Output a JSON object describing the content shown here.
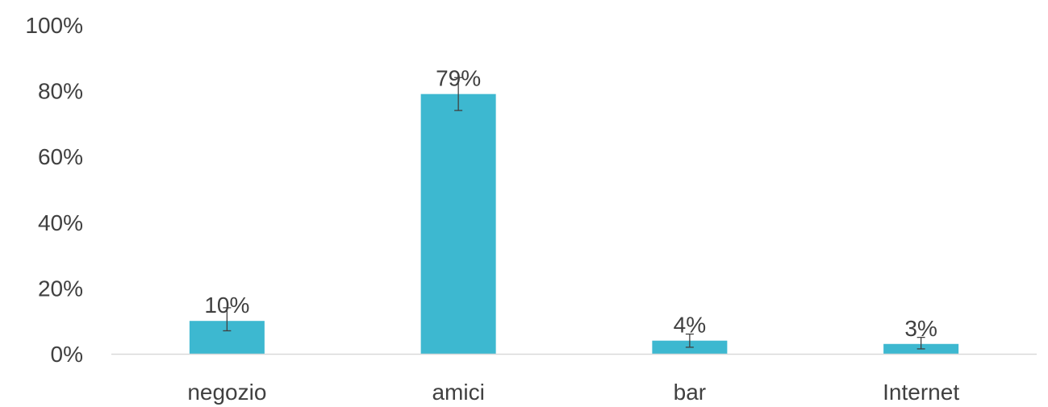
{
  "chart_data": {
    "type": "bar",
    "categories": [
      "negozio",
      "amici",
      "bar",
      "Internet"
    ],
    "values": [
      10,
      79,
      4,
      3
    ],
    "data_labels": [
      "10%",
      "79%",
      "4%",
      "3%"
    ],
    "error_bars": [
      {
        "low": 7,
        "high": 14
      },
      {
        "low": 74,
        "high": 84
      },
      {
        "low": 2,
        "high": 6
      },
      {
        "low": 1.5,
        "high": 5
      }
    ],
    "y_ticks": [
      0,
      20,
      40,
      60,
      80,
      100
    ],
    "y_tick_labels": [
      "0%",
      "20%",
      "40%",
      "60%",
      "80%",
      "100%"
    ],
    "ylim": [
      0,
      100
    ],
    "grid": false,
    "legend": "none",
    "colors": {
      "bar": "#3DB8D0",
      "text": "#404040",
      "axis": "#D9D9D9",
      "error_bar": "#404040"
    }
  }
}
